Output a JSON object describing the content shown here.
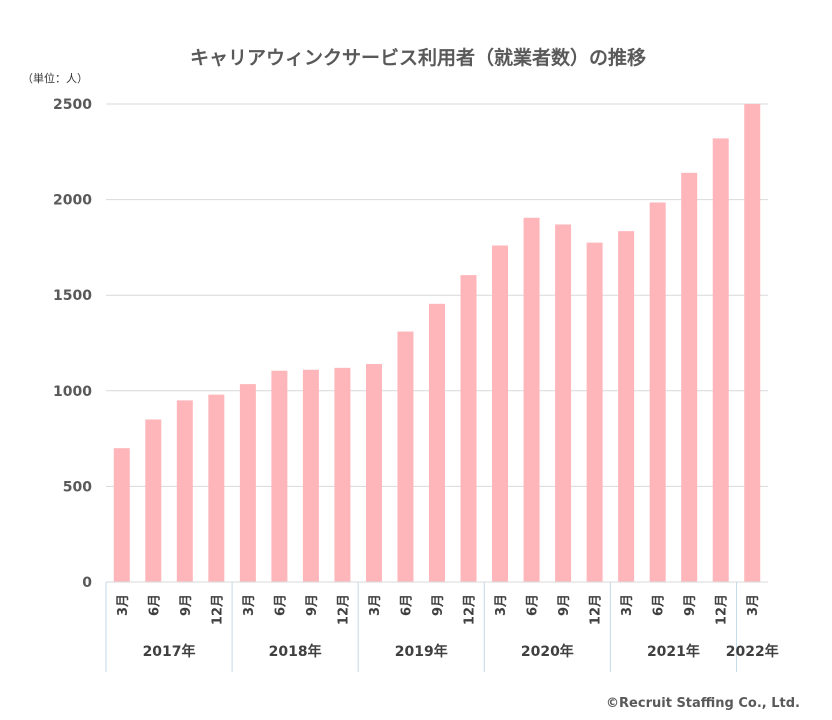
{
  "chart_data": {
    "type": "bar",
    "title": "キャリアウィンクサービス利用者（就業者数）の推移",
    "unit_label": "（単位：人）",
    "ylim": [
      0,
      2500
    ],
    "yticks": [
      0,
      500,
      1000,
      1500,
      2000,
      2500
    ],
    "grid": true,
    "bar_color": "#ffb6bb",
    "grid_color": "#d9d9d9",
    "divider_color": "#c5d9e8",
    "categories": [
      "3月",
      "6月",
      "9月",
      "12月",
      "3月",
      "6月",
      "9月",
      "12月",
      "3月",
      "6月",
      "9月",
      "12月",
      "3月",
      "6月",
      "9月",
      "12月",
      "3月",
      "6月",
      "9月",
      "12月",
      "3月"
    ],
    "years": [
      {
        "label": "2017年",
        "count": 4
      },
      {
        "label": "2018年",
        "count": 4
      },
      {
        "label": "2019年",
        "count": 4
      },
      {
        "label": "2020年",
        "count": 4
      },
      {
        "label": "2021年",
        "count": 4
      },
      {
        "label": "2022年",
        "count": 1
      }
    ],
    "series": [
      {
        "name": "就業者数",
        "values": [
          700,
          850,
          950,
          980,
          1035,
          1105,
          1110,
          1120,
          1140,
          1310,
          1455,
          1605,
          1760,
          1905,
          1870,
          1775,
          1835,
          1985,
          2140,
          2320,
          2500
        ]
      }
    ]
  },
  "footer": {
    "copyright": "©Recruit Staffing Co., Ltd."
  }
}
